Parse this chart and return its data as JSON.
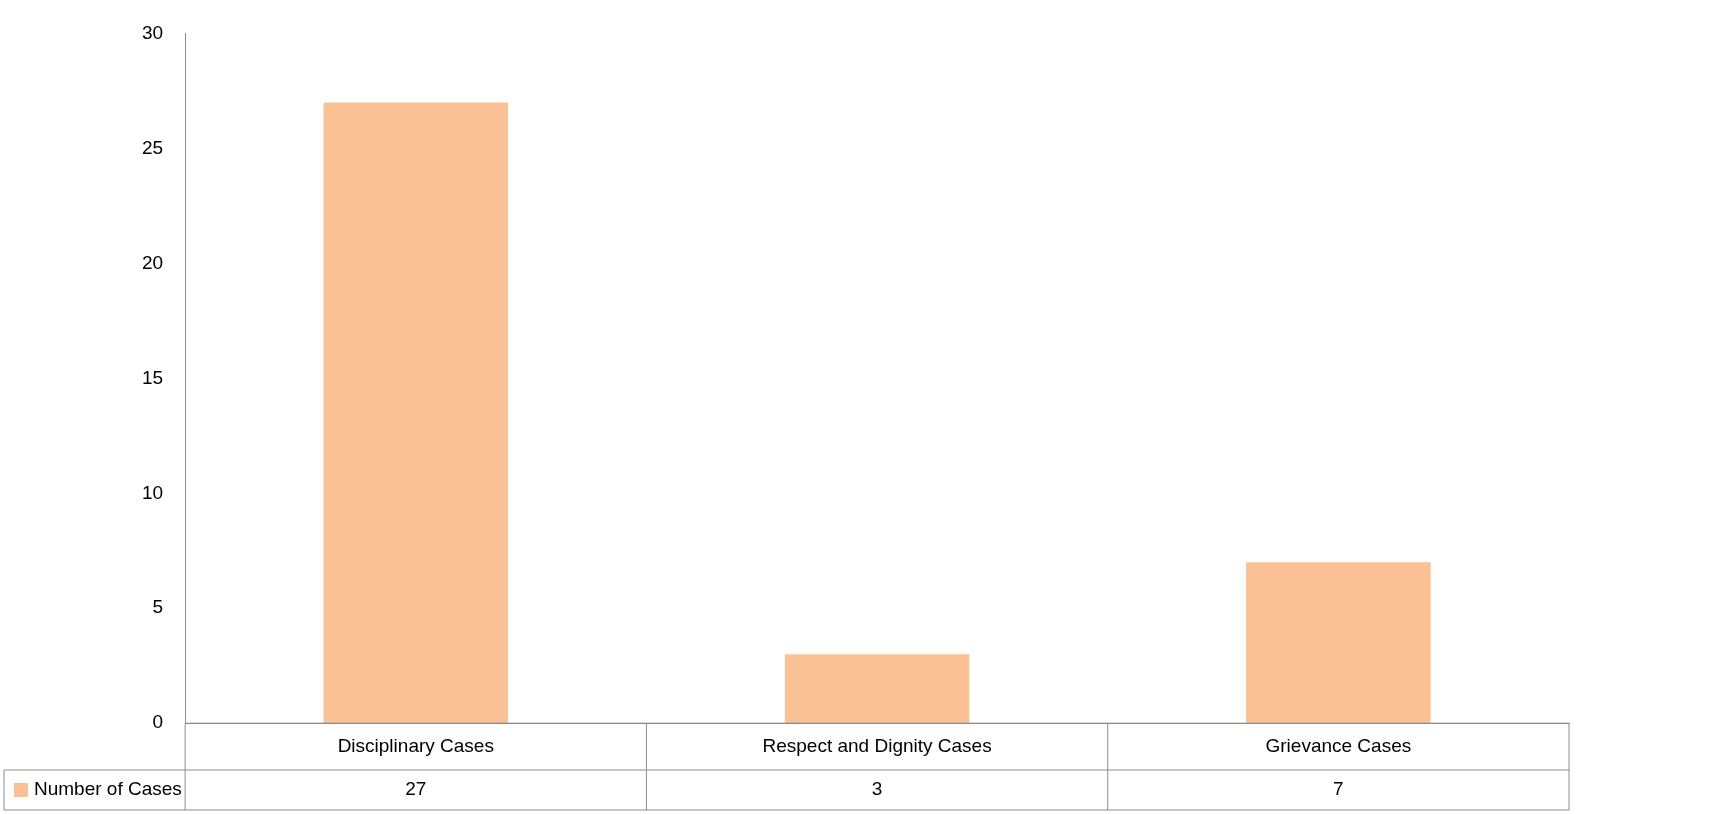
{
  "chart_data": {
    "type": "bar",
    "categories": [
      "Disciplinary Cases",
      "Respect and Dignity Cases",
      "Grievance Cases"
    ],
    "series": [
      {
        "name": "Number of Cases",
        "color": "#f9c194",
        "values": [
          27,
          3,
          7
        ]
      }
    ],
    "ylim": [
      0,
      30
    ],
    "yticks": [
      0,
      5,
      10,
      15,
      20,
      25,
      30
    ],
    "grid": false,
    "legend": "bottom",
    "data_labels": true
  }
}
